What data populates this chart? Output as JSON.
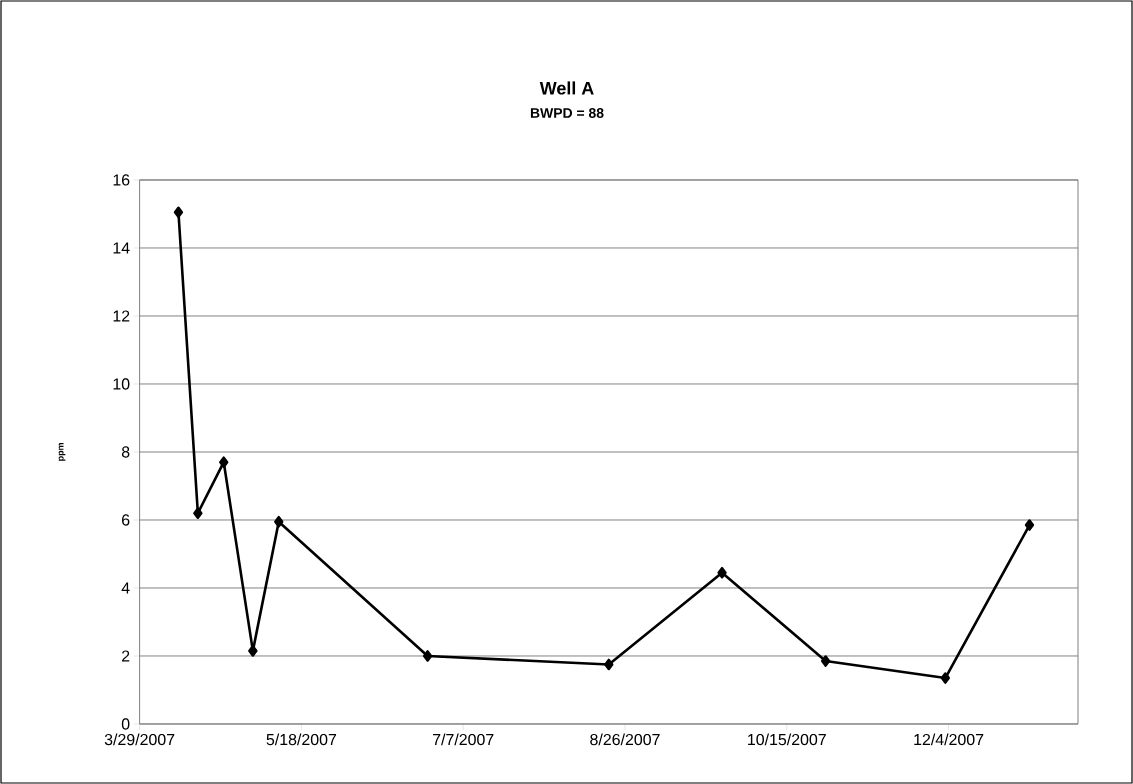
{
  "chart_data": {
    "type": "line",
    "title": "Well A",
    "subtitle": "BWPD = 88",
    "ylabel": "ppm",
    "x": [
      "2007-04-10",
      "2007-04-16",
      "2007-04-24",
      "2007-05-03",
      "2007-05-11",
      "2007-06-26",
      "2007-08-21",
      "2007-09-25",
      "2007-10-27",
      "2007-12-03",
      "2007-12-29"
    ],
    "series": [
      {
        "color": "#000000",
        "values": [
          15.05,
          6.2,
          7.7,
          2.15,
          5.95,
          2.0,
          1.75,
          4.45,
          1.85,
          1.35,
          5.85
        ]
      }
    ],
    "xlim": [
      "2007-03-29",
      "2008-01-13"
    ],
    "xticks": [
      {
        "value": "2007-03-29",
        "label": "3/29/2007"
      },
      {
        "value": "2007-05-18",
        "label": "5/18/2007"
      },
      {
        "value": "2007-07-07",
        "label": "7/7/2007"
      },
      {
        "value": "2007-08-26",
        "label": "8/26/2007"
      },
      {
        "value": "2007-10-15",
        "label": "10/15/2007"
      },
      {
        "value": "2007-12-04",
        "label": "12/4/2007"
      }
    ],
    "ylim": [
      0,
      16
    ],
    "yticks": [
      0,
      2,
      4,
      6,
      8,
      10,
      12,
      14,
      16
    ],
    "grid": "y",
    "marker": "diamond",
    "line_style": "solid"
  }
}
